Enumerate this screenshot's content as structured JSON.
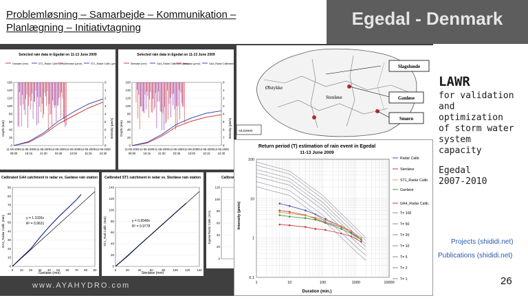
{
  "header": {
    "title_line1": "Problemløsning – Samarbejde – Kommunikation –",
    "title_line2": "Planlægning – Initiativtagning",
    "location": "Egedal  - Denmark"
  },
  "sidebar": {
    "heading": "LAWR",
    "lines": [
      "for validation",
      "and",
      "optimization",
      "of storm water",
      "system",
      "capacity"
    ],
    "egedal": "Egedal",
    "years": "2007-2010",
    "link_projects": "Projects (shididi.net)",
    "link_publications": "Publications (shididi.net)"
  },
  "footer": {
    "website": "www.AYAHYDRO.com",
    "page_number": "26"
  },
  "map": {
    "labels": {
      "slagslunde": "Slagslunde",
      "olstykke": "Ølstykke",
      "stenlose": "Stenløse",
      "ganlose": "Ganløse",
      "smorn": "Smørn",
      "station": "-st.town"
    }
  },
  "colors": {
    "header_right_bg": "#5d5d5d",
    "slide_bg": "#3f3f3f",
    "link": "#2a5aa8",
    "gauge_red": "#d43a3a",
    "radar_blue": "#3a4ab8",
    "radar_purple": "#8a2aa8"
  },
  "chart_data": [
    {
      "type": "line",
      "title": "Selected rain data in Egedal on 11-13 June 2009",
      "legend": [
        "Ganløse (mm)",
        "ST1_Radar Calib. (mm)",
        "Stenløse (µm/s)",
        "ST1_Radar Calib. (µm/s)"
      ],
      "ylabel": "Depth (mm)",
      "y2label": "Intensity (µm/s)",
      "ylim": [
        0,
        160
      ],
      "y2lim": [
        8,
        0
      ],
      "yticks": [
        "160",
        "140",
        "120",
        "100",
        "80",
        "60",
        "40",
        "20",
        "0"
      ],
      "y2ticks": [
        "0",
        "1",
        "2",
        "3",
        "4",
        "5",
        "6",
        "7",
        "8"
      ],
      "categories": [
        "11-06-2009 09:00",
        "11-06-2009 15:15",
        "11-06-2009 21:30",
        "12-06-2009 03:45",
        "12-06-2009 10:00",
        "12-06-2009 16:15",
        "12-06-2009 22:30"
      ],
      "series": [
        {
          "name": "Ganløse (mm)",
          "values": [
            0,
            8,
            28,
            55,
            75,
            95,
            110
          ]
        },
        {
          "name": "ST1_Radar Calib. (mm)",
          "values": [
            0,
            10,
            32,
            62,
            85,
            105,
            118
          ]
        }
      ]
    },
    {
      "type": "line",
      "title": "Selected rain data in Egedal on 11-13 June 2009",
      "legend": [
        "Stenløse (mm)",
        "GA4_Radar Calibrated (mm)",
        "Stenløse (µm/s)",
        "GA4_Radar Calibrated (µm/s)"
      ],
      "ylabel": "Depth (mm)",
      "y2label": "Intensity (µm/s)",
      "ylim": [
        0,
        160
      ],
      "y2lim": [
        8,
        0
      ],
      "yticks": [
        "160",
        "140",
        "120",
        "100",
        "80",
        "60",
        "40",
        "20",
        "0"
      ],
      "y2ticks": [
        "0",
        "1",
        "2",
        "3",
        "4",
        "5",
        "6",
        "7",
        "8"
      ],
      "categories": [
        "11-06-2009 09:00",
        "11-06-2009 15:15",
        "11-06-2009 21:30",
        "12-06-2009 03:45",
        "12-06-2009 10:00",
        "12-06-2009 16:15",
        "12-06-2009 22:30"
      ],
      "series": [
        {
          "name": "Stenløse (mm)",
          "values": [
            0,
            6,
            24,
            48,
            62,
            72,
            78
          ]
        },
        {
          "name": "GA4_Radar Calibrated (mm)",
          "values": [
            0,
            8,
            28,
            54,
            70,
            82,
            88
          ]
        }
      ]
    },
    {
      "type": "scatter",
      "title": "Calibrated GA4 catchment in radar vs. Ganløse rain station",
      "xlabel": "Ganløse (mm)",
      "ylabel": "GA4_Radar Calib. (mm)",
      "xlim": [
        0,
        90
      ],
      "ylim": [
        0,
        90
      ],
      "xticks": [
        "0",
        "10",
        "20",
        "30",
        "40",
        "50",
        "60",
        "70",
        "80",
        "90"
      ],
      "yticks": [
        "90",
        "80",
        "70",
        "60",
        "50",
        "40",
        "30",
        "20",
        "10",
        "0"
      ],
      "equation": "y = 1.1026x",
      "r2": "R² = 0.9621",
      "x": [
        0,
        10,
        20,
        30,
        40,
        50,
        60,
        70,
        75
      ],
      "y": [
        0,
        10,
        20,
        33,
        45,
        56,
        66,
        76,
        82
      ]
    },
    {
      "type": "scatter",
      "title": "Calibrated ST1 catchment in radar vs. Stenløse rain station",
      "xlabel": "Stenløse (mm)",
      "ylabel": "ST1_Rad Calib. (mm)",
      "xlim": [
        0,
        140
      ],
      "ylim": [
        0,
        140
      ],
      "xticks": [
        "0",
        "20",
        "40",
        "60",
        "80",
        "100",
        "120",
        "140"
      ],
      "yticks": [
        "140",
        "120",
        "100",
        "80",
        "60",
        "40",
        "20",
        "0"
      ],
      "equation": "y = 0.9548x",
      "r2": "R² = 0.9778",
      "x": [
        0,
        20,
        40,
        60,
        80,
        100,
        118
      ],
      "y": [
        0,
        18,
        38,
        57,
        76,
        95,
        112
      ]
    },
    {
      "type": "scatter",
      "title": "Calibrat",
      "ylabel": "Egedal Radar Calib. (mm)",
      "ylim": [
        0,
        120
      ],
      "yticks": [
        "120",
        "100",
        "80",
        "60",
        "40",
        "20",
        "0"
      ]
    },
    {
      "type": "line",
      "title": "Return period (T) estimation of rain event in Egedal",
      "subtitle": "11-13 June 2009",
      "xlabel": "Duration (min.)",
      "ylabel": "Intensity (µm/s)",
      "xscale": "log",
      "yscale": "log",
      "xlim": [
        1,
        10000
      ],
      "ylim": [
        0.1,
        100
      ],
      "xticks": [
        "1",
        "10",
        "100",
        "1000",
        "10000"
      ],
      "yticks": [
        "100",
        "10",
        "1",
        "0.1"
      ],
      "legend": [
        "Radar Calib.",
        "Stenløse",
        "ST1_Radar Calib.",
        "Ganløse",
        "GA4_Radar Calib.",
        "T= 100",
        "T= 50",
        "T= 20",
        "T= 10",
        "T= 5",
        "T= 2",
        "T= 1"
      ],
      "series": [
        {
          "name": "Radar Calib.",
          "x": [
            5,
            10,
            30,
            60,
            120,
            360,
            720,
            1440
          ],
          "y": [
            7.5,
            6.5,
            5.0,
            4.0,
            3.0,
            2.0,
            1.5,
            1.0
          ]
        },
        {
          "name": "Stenløse",
          "x": [
            5,
            10,
            30,
            60,
            120,
            360,
            720,
            1440
          ],
          "y": [
            5.0,
            4.6,
            3.8,
            3.1,
            2.5,
            1.9,
            1.4,
            0.9
          ]
        },
        {
          "name": "ST1_Radar Calib.",
          "x": [
            5,
            10,
            30,
            60,
            120,
            360,
            720,
            1440
          ],
          "y": [
            4.5,
            4.2,
            3.7,
            3.3,
            2.8,
            2.0,
            1.5,
            1.0
          ]
        },
        {
          "name": "Ganløse",
          "x": [
            5,
            10,
            30,
            60,
            120,
            360,
            720,
            1440
          ],
          "y": [
            3.8,
            3.5,
            3.2,
            2.9,
            2.4,
            1.7,
            1.3,
            0.9
          ]
        },
        {
          "name": "GA4_Radar Calib.",
          "x": [
            5,
            10,
            30,
            60,
            120,
            360,
            720,
            1440
          ],
          "y": [
            2.2,
            2.1,
            1.9,
            1.7,
            1.6,
            1.3,
            1.1,
            0.8
          ]
        },
        {
          "name": "T= 100",
          "x": [
            1,
            10,
            100,
            1000,
            2000
          ],
          "y": [
            85,
            50,
            12,
            1.8,
            1.0
          ]
        },
        {
          "name": "T= 50",
          "x": [
            1,
            10,
            100,
            1000,
            2000
          ],
          "y": [
            70,
            42,
            10,
            1.5,
            0.85
          ]
        },
        {
          "name": "T= 20",
          "x": [
            1,
            10,
            100,
            1000,
            2000
          ],
          "y": [
            55,
            33,
            8,
            1.2,
            0.7
          ]
        },
        {
          "name": "T= 10",
          "x": [
            1,
            10,
            100,
            1000,
            2000
          ],
          "y": [
            45,
            27,
            6.5,
            1.0,
            0.6
          ]
        },
        {
          "name": "T= 5",
          "x": [
            1,
            10,
            100,
            1000,
            2000
          ],
          "y": [
            36,
            22,
            5.2,
            0.8,
            0.48
          ]
        },
        {
          "name": "T= 2",
          "x": [
            1,
            10,
            100,
            1000,
            2000
          ],
          "y": [
            27,
            16,
            3.8,
            0.6,
            0.36
          ]
        },
        {
          "name": "T= 1",
          "x": [
            1,
            10,
            100,
            1000,
            2000
          ],
          "y": [
            20,
            12,
            2.9,
            0.45,
            0.27
          ]
        }
      ]
    }
  ]
}
